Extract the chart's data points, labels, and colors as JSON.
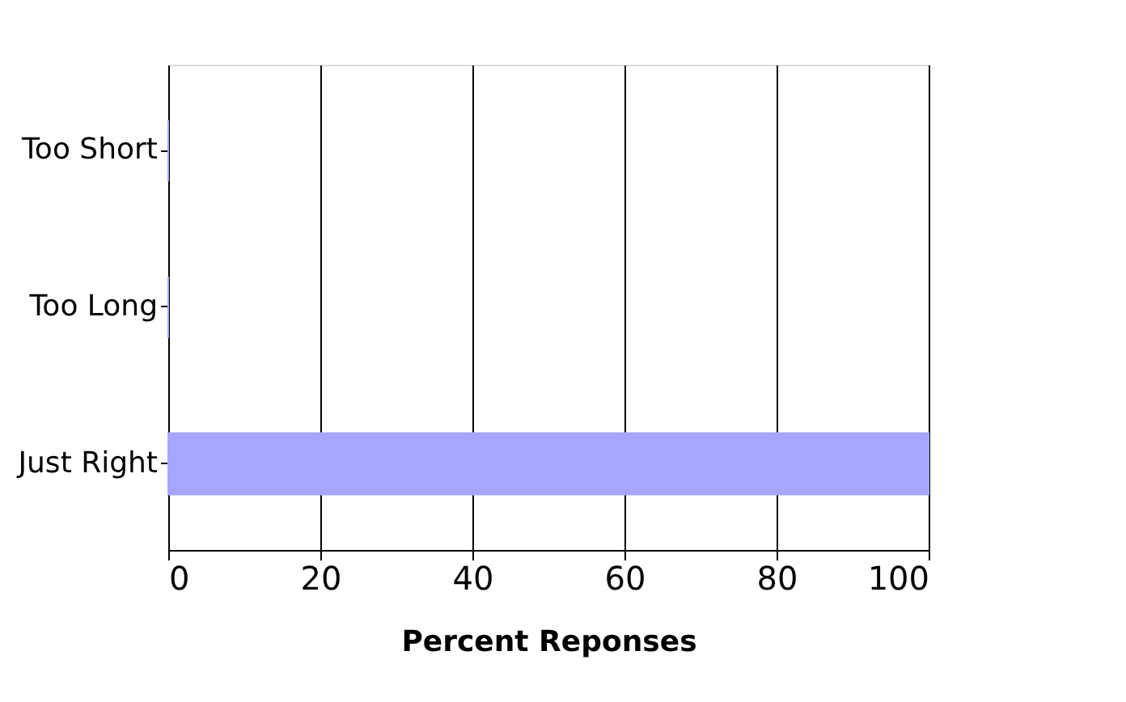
{
  "chart_data": {
    "type": "bar",
    "orientation": "horizontal",
    "categories": [
      "Too Short",
      "Too Long",
      "Just Right"
    ],
    "values": [
      0,
      0,
      100
    ],
    "color": "#a6a6ff",
    "xlabel": "Percent  Reponses",
    "xlim": [
      0,
      100
    ],
    "xticks": [
      0,
      20,
      40,
      60,
      80,
      100
    ],
    "grid": "x"
  }
}
